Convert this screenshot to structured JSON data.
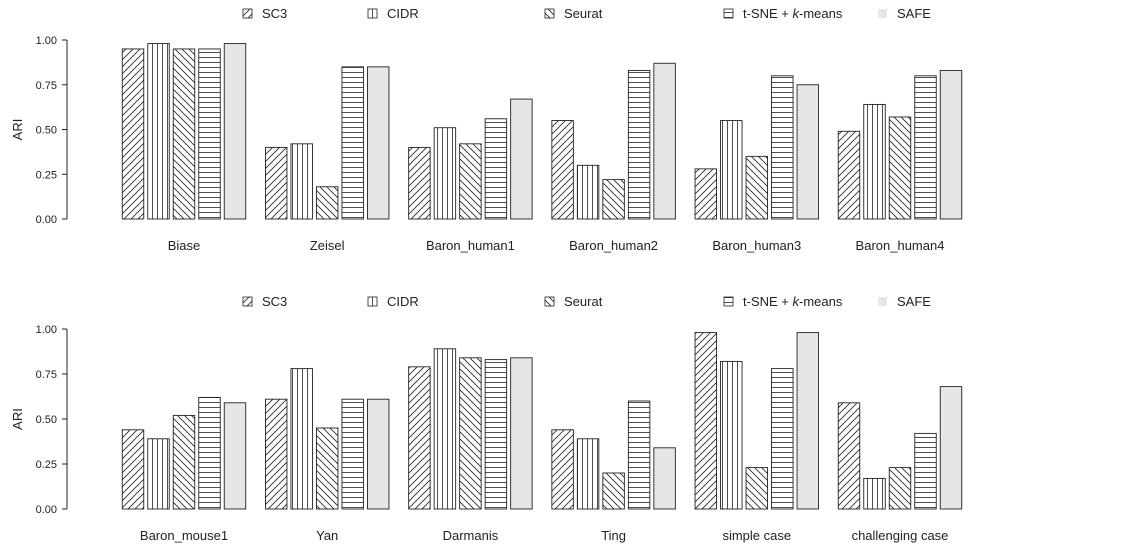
{
  "legend": [
    {
      "name": "SC3",
      "pattern": "diag-up"
    },
    {
      "name": "CIDR",
      "pattern": "vertical"
    },
    {
      "name": "Seurat",
      "pattern": "diag-down"
    },
    {
      "name": "t-SNE + ",
      "name_italic": "k",
      "name_suffix": "-means",
      "pattern": "horizontal"
    },
    {
      "name": "SAFE",
      "pattern": "solid"
    }
  ],
  "colors": {
    "bar_stroke": "#222222",
    "safe_fill": "#e6e6e6",
    "hatch": "#222222"
  },
  "chart_data": [
    {
      "type": "bar",
      "ylabel": "ARI",
      "ylim": [
        0,
        1
      ],
      "yticks": [
        "0.00",
        "0.25",
        "0.50",
        "0.75",
        "1.00"
      ],
      "categories": [
        "Biase",
        "Zeisel",
        "Baron_human1",
        "Baron_human2",
        "Baron_human3",
        "Baron_human4"
      ],
      "series": [
        {
          "name": "SC3",
          "values": [
            0.95,
            0.4,
            0.4,
            0.55,
            0.28,
            0.49
          ]
        },
        {
          "name": "CIDR",
          "values": [
            0.98,
            0.42,
            0.51,
            0.3,
            0.55,
            0.64
          ]
        },
        {
          "name": "Seurat",
          "values": [
            0.95,
            0.18,
            0.42,
            0.22,
            0.35,
            0.57
          ]
        },
        {
          "name": "t-SNE + k-means",
          "values": [
            0.95,
            0.85,
            0.56,
            0.83,
            0.8,
            0.8
          ]
        },
        {
          "name": "SAFE",
          "values": [
            0.98,
            0.85,
            0.67,
            0.87,
            0.75,
            0.83
          ]
        }
      ]
    },
    {
      "type": "bar",
      "ylabel": "ARI",
      "ylim": [
        0,
        1
      ],
      "yticks": [
        "0.00",
        "0.25",
        "0.50",
        "0.75",
        "1.00"
      ],
      "categories": [
        "Baron_mouse1",
        "Yan",
        "Darmanis",
        "Ting",
        "simple case",
        "challenging case"
      ],
      "series": [
        {
          "name": "SC3",
          "values": [
            0.44,
            0.61,
            0.79,
            0.44,
            0.98,
            0.59
          ]
        },
        {
          "name": "CIDR",
          "values": [
            0.39,
            0.78,
            0.89,
            0.39,
            0.82,
            0.17
          ]
        },
        {
          "name": "Seurat",
          "values": [
            0.52,
            0.45,
            0.84,
            0.2,
            0.23,
            0.23
          ]
        },
        {
          "name": "t-SNE + k-means",
          "values": [
            0.62,
            0.61,
            0.83,
            0.6,
            0.78,
            0.42
          ]
        },
        {
          "name": "SAFE",
          "values": [
            0.59,
            0.61,
            0.84,
            0.34,
            0.98,
            0.68
          ]
        }
      ]
    }
  ]
}
